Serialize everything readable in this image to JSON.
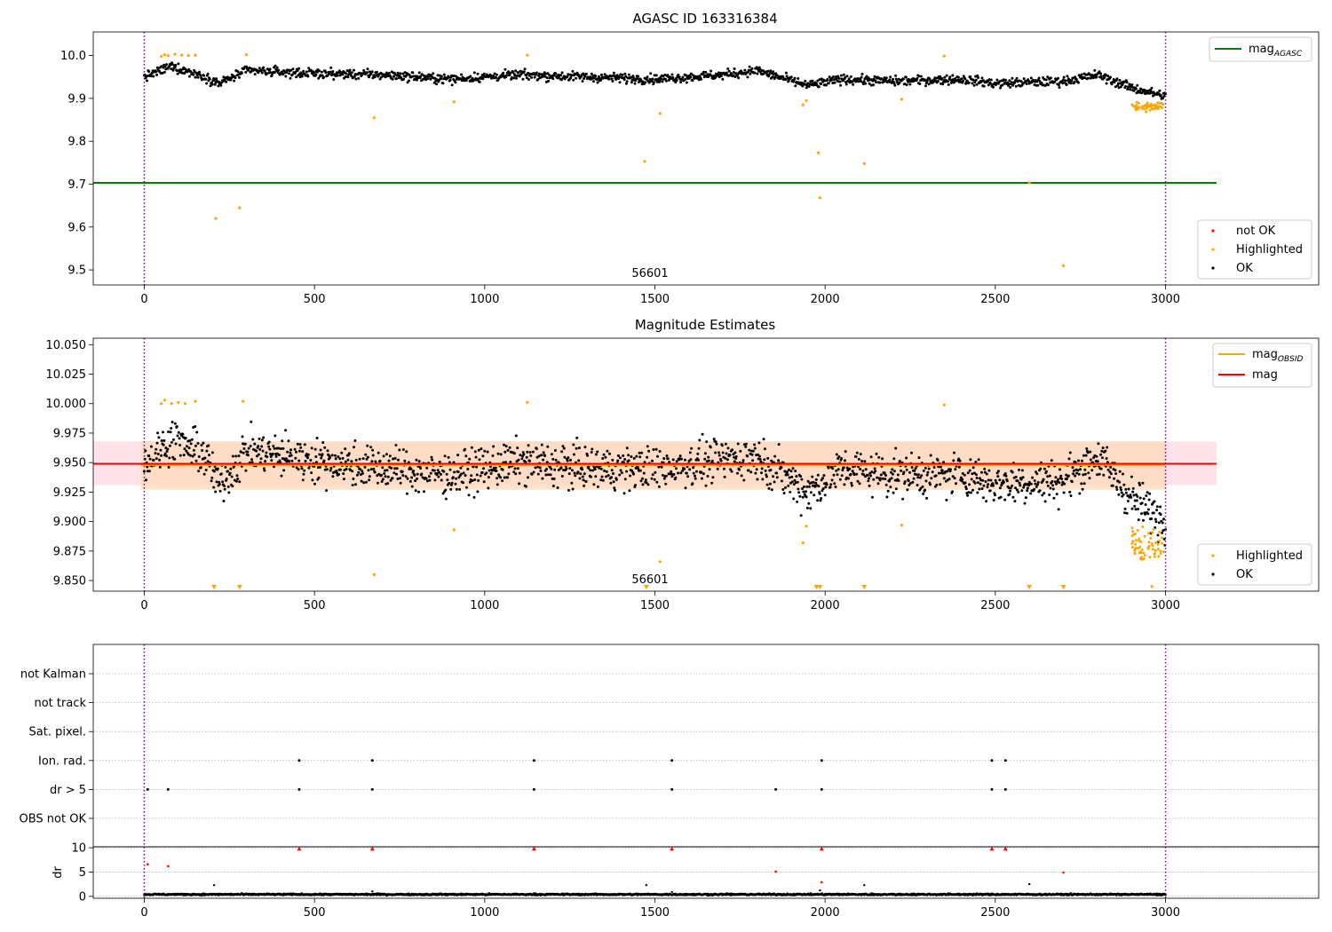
{
  "chart_data": [
    {
      "type": "scatter",
      "title": "AGASC ID 163316384",
      "xlim": [
        -150,
        3450
      ],
      "ylim": [
        9.465,
        10.055
      ],
      "xticks": [
        0,
        500,
        1000,
        1500,
        2000,
        2500,
        3000
      ],
      "yticks": [
        9.5,
        9.6,
        9.7,
        9.8,
        9.9,
        10.0
      ],
      "grid": false,
      "annotation": {
        "text": "56601",
        "x": 1500,
        "y": 9.475
      },
      "vlines": [
        0,
        3000
      ],
      "hline": {
        "y": 9.703,
        "x_range": [
          -150,
          3150
        ],
        "color": "#008000"
      },
      "legend_upper": {
        "placement": "top-right",
        "entries": [
          {
            "label": "mag",
            "sub": "AGASC",
            "color": "#008000",
            "marker": "line"
          }
        ]
      },
      "legend_lower": {
        "placement": "bottom-right",
        "entries": [
          {
            "label": "not OK",
            "color": "#ff0000",
            "marker": "dot"
          },
          {
            "label": "Highlighted",
            "color": "#ffa500",
            "marker": "dot"
          },
          {
            "label": "OK",
            "color": "#000000",
            "marker": "dot"
          }
        ]
      },
      "baseline": {
        "n": 1560,
        "x_range": [
          0,
          3000
        ],
        "segments": [
          [
            0,
            9.95
          ],
          [
            80,
            9.975
          ],
          [
            180,
            9.95
          ],
          [
            220,
            9.935
          ],
          [
            300,
            9.965
          ],
          [
            500,
            9.958
          ],
          [
            700,
            9.955
          ],
          [
            900,
            9.945
          ],
          [
            1100,
            9.955
          ],
          [
            1300,
            9.95
          ],
          [
            1500,
            9.945
          ],
          [
            1700,
            9.955
          ],
          [
            1800,
            9.965
          ],
          [
            1950,
            9.93
          ],
          [
            2050,
            9.945
          ],
          [
            2200,
            9.94
          ],
          [
            2400,
            9.945
          ],
          [
            2500,
            9.935
          ],
          [
            2700,
            9.94
          ],
          [
            2800,
            9.955
          ],
          [
            2900,
            9.925
          ],
          [
            3000,
            9.905
          ]
        ],
        "spread": 0.011
      },
      "highlighted_tail": {
        "n": 55,
        "x_range": [
          2900,
          2995
        ],
        "y_center": 9.882,
        "spread": 0.012
      },
      "highlighted_points": [
        [
          50,
          9.998
        ],
        [
          60,
          10.002
        ],
        [
          70,
          10.0
        ],
        [
          90,
          10.003
        ],
        [
          110,
          10.001
        ],
        [
          130,
          10.0
        ],
        [
          150,
          10.001
        ],
        [
          210,
          9.62
        ],
        [
          280,
          9.645
        ],
        [
          300,
          10.002
        ],
        [
          675,
          9.855
        ],
        [
          910,
          9.892
        ],
        [
          1125,
          10.001
        ],
        [
          1470,
          9.753
        ],
        [
          1515,
          9.865
        ],
        [
          1935,
          9.885
        ],
        [
          1945,
          9.895
        ],
        [
          1980,
          9.773
        ],
        [
          1985,
          9.668
        ],
        [
          2115,
          9.748
        ],
        [
          2225,
          9.898
        ],
        [
          2350,
          9.999
        ],
        [
          2600,
          9.703
        ],
        [
          2700,
          9.51
        ]
      ]
    },
    {
      "type": "scatter",
      "title": "Magnitude Estimates",
      "xlim": [
        -150,
        3450
      ],
      "ylim": [
        9.841,
        10.0555
      ],
      "xticks": [
        0,
        500,
        1000,
        1500,
        2000,
        2500,
        3000
      ],
      "yticks": [
        9.85,
        9.875,
        9.9,
        9.925,
        9.95,
        9.975,
        10.0,
        10.025,
        10.05
      ],
      "ytick_labels": [
        "9.850",
        "9.875",
        "9.900",
        "9.925",
        "9.950",
        "9.975",
        "10.000",
        "10.025",
        "10.050"
      ],
      "grid": false,
      "annotation": {
        "text": "56601",
        "x": 1500,
        "y": 9.846
      },
      "vlines": [
        0,
        3000
      ],
      "mag_line": {
        "y": 9.949,
        "x_range": [
          -150,
          3150
        ],
        "color": "#ff0000",
        "band": [
          9.931,
          9.968
        ],
        "band_color": "#ffc0cb"
      },
      "obsid_line": {
        "y": 9.948,
        "x_range": [
          -10,
          3000
        ],
        "color": "#ffa500",
        "band": [
          9.927,
          9.968
        ],
        "band_color": "#ffdab9"
      },
      "legend_upper": {
        "placement": "top-right",
        "entries": [
          {
            "label": "mag",
            "sub": "OBSID",
            "color": "#ffa500",
            "marker": "line"
          },
          {
            "label": "mag",
            "sub": "",
            "color": "#ff0000",
            "marker": "line"
          }
        ]
      },
      "legend_lower": {
        "placement": "bottom-right",
        "entries": [
          {
            "label": "Highlighted",
            "color": "#ffa500",
            "marker": "dot"
          },
          {
            "label": "OK",
            "color": "#000000",
            "marker": "dot"
          }
        ]
      },
      "baseline": {
        "n": 1750,
        "x_range": [
          0,
          3000
        ],
        "segments": [
          [
            0,
            9.948
          ],
          [
            80,
            9.97
          ],
          [
            180,
            9.955
          ],
          [
            220,
            9.93
          ],
          [
            300,
            9.96
          ],
          [
            500,
            9.952
          ],
          [
            700,
            9.945
          ],
          [
            900,
            9.94
          ],
          [
            1100,
            9.95
          ],
          [
            1300,
            9.945
          ],
          [
            1500,
            9.945
          ],
          [
            1700,
            9.952
          ],
          [
            1800,
            9.955
          ],
          [
            1950,
            9.925
          ],
          [
            2050,
            9.945
          ],
          [
            2200,
            9.94
          ],
          [
            2400,
            9.94
          ],
          [
            2500,
            9.932
          ],
          [
            2700,
            9.935
          ],
          [
            2800,
            9.955
          ],
          [
            2900,
            9.92
          ],
          [
            3000,
            9.9
          ]
        ],
        "spread": 0.018
      },
      "highlighted_tail": {
        "n": 60,
        "x_range": [
          2900,
          2995
        ],
        "y_center": 9.882,
        "spread": 0.014
      },
      "highlighted_points": [
        [
          50,
          10.0
        ],
        [
          60,
          10.003
        ],
        [
          80,
          10.0
        ],
        [
          100,
          10.001
        ],
        [
          120,
          10.0
        ],
        [
          150,
          10.002
        ],
        [
          290,
          10.002
        ],
        [
          910,
          9.893
        ],
        [
          1125,
          10.001
        ],
        [
          1515,
          9.866
        ],
        [
          675,
          9.855
        ],
        [
          1935,
          9.882
        ],
        [
          1945,
          9.896
        ],
        [
          2225,
          9.897
        ],
        [
          2350,
          9.999
        ],
        [
          2910,
          9.873
        ],
        [
          2960,
          9.845
        ]
      ],
      "below_markers": [
        205,
        280,
        1475,
        1975,
        1985,
        2115,
        2600,
        2700
      ]
    },
    {
      "type": "scatter",
      "title": "",
      "xlim": [
        -150,
        3450
      ],
      "categories": [
        "OBS not OK",
        "dr > 5",
        "Ion. rad.",
        "Sat. pixel.",
        "not track",
        "not Kalman"
      ],
      "grid": true,
      "vlines": [
        0,
        3000
      ],
      "flag_points": {
        "dr > 5": [
          10,
          70,
          455,
          670,
          1145,
          1550,
          1855,
          1990,
          2490,
          2530
        ],
        "Ion. rad.": [
          455,
          670,
          1145,
          1550,
          1990,
          2490,
          2530
        ]
      }
    },
    {
      "type": "scatter",
      "title": "",
      "xlim": [
        -150,
        3450
      ],
      "ylim": [
        -0.4,
        10.2
      ],
      "yticks": [
        0,
        5,
        10
      ],
      "xticks": [
        0,
        500,
        1000,
        1500,
        2000,
        2500,
        3000
      ],
      "ylabel": "dr",
      "grid": true,
      "vlines": [
        0,
        3000
      ],
      "baseline": {
        "n": 1500,
        "x_range": [
          0,
          3000
        ],
        "y_center": 0.4,
        "spread": 0.15
      },
      "red_markers": [
        [
          455,
          9.8
        ],
        [
          670,
          9.8
        ],
        [
          1145,
          9.8
        ],
        [
          1550,
          9.8
        ],
        [
          1990,
          9.8
        ],
        [
          2490,
          9.8
        ],
        [
          2530,
          9.8
        ]
      ],
      "red_points": [
        [
          10,
          6.6
        ],
        [
          70,
          6.2
        ],
        [
          1855,
          5.1
        ],
        [
          1990,
          2.9
        ],
        [
          2700,
          4.9
        ]
      ],
      "black_points": [
        [
          205,
          2.3
        ],
        [
          1475,
          2.3
        ],
        [
          1985,
          1.2
        ],
        [
          2115,
          2.3
        ],
        [
          2600,
          2.5
        ],
        [
          670,
          1.0
        ],
        [
          1550,
          0.9
        ]
      ]
    }
  ]
}
